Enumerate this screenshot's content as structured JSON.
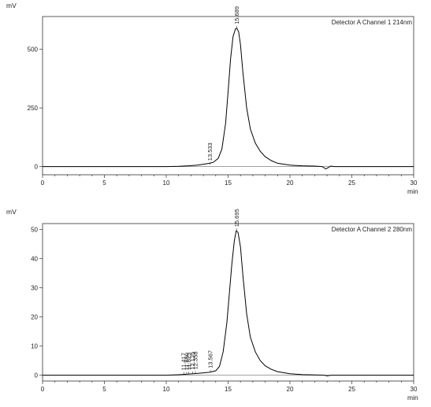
{
  "chart_data": [
    {
      "type": "line",
      "title": "",
      "detector_label": "Detector A Channel 1 214nm",
      "ylabel": "mV",
      "xlabel": "min",
      "xlim": [
        0,
        30
      ],
      "ylim": [
        -35,
        640
      ],
      "x_ticks": [
        0,
        5,
        10,
        15,
        20,
        25,
        30
      ],
      "y_ticks": [
        0,
        250,
        500
      ],
      "grid": false,
      "legend": "none",
      "peaks": [
        {
          "label": "13.533",
          "x": 13.533,
          "y": 8
        },
        {
          "label": "15.689",
          "x": 15.689,
          "y": 590
        }
      ],
      "series": [
        {
          "color": "#000000",
          "x": [
            0,
            5,
            8,
            10,
            11,
            11.8,
            12.5,
            13.0,
            13.5,
            13.8,
            14.2,
            14.5,
            14.8,
            15.0,
            15.2,
            15.4,
            15.6,
            15.7,
            15.85,
            16.0,
            16.2,
            16.5,
            16.8,
            17.2,
            17.6,
            18.0,
            18.5,
            19.0,
            20.0,
            21.0,
            22.0,
            22.6,
            22.9,
            23.1,
            23.3,
            23.6,
            24.0,
            25,
            30
          ],
          "values": [
            0,
            0,
            0,
            0,
            1,
            3,
            6,
            10,
            14,
            18,
            35,
            75,
            185,
            320,
            460,
            555,
            588,
            590,
            575,
            520,
            400,
            250,
            160,
            100,
            65,
            42,
            25,
            14,
            6,
            3,
            2,
            0,
            -10,
            -4,
            2,
            0,
            0,
            0,
            0
          ]
        }
      ]
    },
    {
      "type": "line",
      "title": "",
      "detector_label": "Detector A Channel 2 280nm",
      "ylabel": "mV",
      "xlabel": "min",
      "xlim": [
        0,
        30
      ],
      "ylim": [
        -2,
        52
      ],
      "x_ticks": [
        0,
        5,
        10,
        15,
        20,
        25,
        30
      ],
      "y_ticks": [
        0,
        10,
        20,
        30,
        40,
        50
      ],
      "grid": false,
      "legend": "none",
      "peaks": [
        {
          "label": "11.417",
          "x": 11.417,
          "y": 0.3
        },
        {
          "label": "11.650",
          "x": 11.65,
          "y": 0.35
        },
        {
          "label": "11.825",
          "x": 11.825,
          "y": 0.4
        },
        {
          "label": "12.125",
          "x": 12.125,
          "y": 0.5
        },
        {
          "label": "12.358",
          "x": 12.358,
          "y": 0.6
        },
        {
          "label": "13.567",
          "x": 13.567,
          "y": 1.0
        },
        {
          "label": "15.695",
          "x": 15.695,
          "y": 49.5
        }
      ],
      "series": [
        {
          "color": "#000000",
          "x": [
            0,
            5,
            10,
            11.0,
            11.5,
            12.0,
            12.5,
            13.0,
            13.5,
            14.0,
            14.3,
            14.6,
            14.9,
            15.1,
            15.3,
            15.5,
            15.65,
            15.8,
            16.0,
            16.2,
            16.5,
            16.8,
            17.2,
            17.6,
            18.0,
            18.5,
            19.0,
            20.0,
            21.0,
            22.0,
            22.8,
            23.0,
            23.3,
            24.0,
            30
          ],
          "values": [
            0,
            0,
            0,
            0.15,
            0.3,
            0.45,
            0.6,
            0.8,
            1.0,
            1.5,
            3,
            8,
            18,
            28,
            38,
            46,
            49.5,
            49,
            44,
            34,
            21,
            13,
            8,
            5,
            3.2,
            2,
            1.2,
            0.5,
            0.2,
            0.1,
            0,
            -0.25,
            0,
            0,
            0
          ]
        }
      ]
    }
  ]
}
